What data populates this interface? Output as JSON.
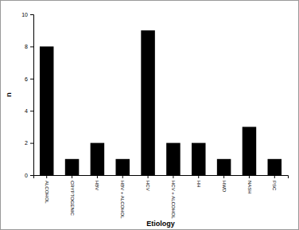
{
  "chart_data": {
    "type": "bar",
    "x_label": "Etiology",
    "y_label": "n",
    "categories": [
      "ALCOHOL",
      "CRYPTOGENIC",
      "HBV",
      "HBV + ALCOHOL",
      "HCV",
      "HCV + ALCOHOL",
      "HH",
      "HWD",
      "NASH",
      "PSC"
    ],
    "values": [
      8,
      1,
      2,
      1,
      9,
      2,
      2,
      1,
      3,
      1
    ],
    "color": "#000000",
    "ylim": [
      0,
      10
    ],
    "yticks": [
      0,
      2,
      4,
      6,
      8,
      10
    ],
    "grid": false
  }
}
